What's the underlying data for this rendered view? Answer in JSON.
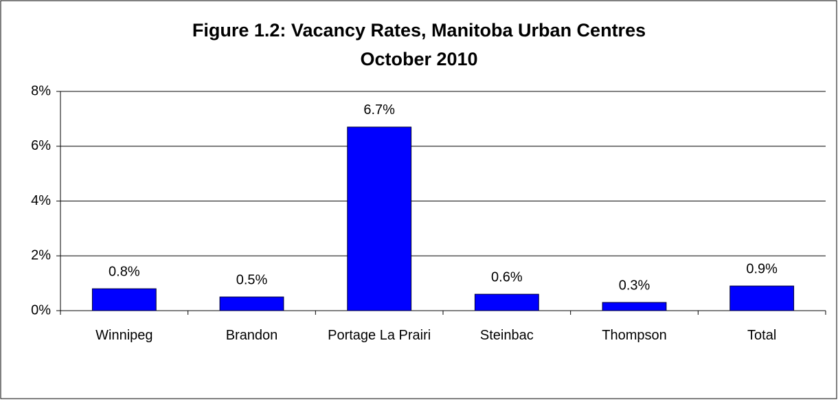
{
  "chart_data": {
    "type": "bar",
    "title": "Figure 1.2: Vacancy Rates, Manitoba Urban Centres",
    "subtitle": "October 2010",
    "categories": [
      "Winnipeg",
      "Brandon",
      "Portage La Prairi",
      "Steinbac",
      "Thompson",
      "Total"
    ],
    "values": [
      0.8,
      0.5,
      6.7,
      0.6,
      0.3,
      0.9
    ],
    "value_labels": [
      "0.8%",
      "0.5%",
      "6.7%",
      "0.6%",
      "0.3%",
      "0.9%"
    ],
    "color": "#0000ff",
    "ylim": [
      0,
      8
    ],
    "yticks": [
      {
        "value": 0,
        "label": "0%"
      },
      {
        "value": 2,
        "label": "2%"
      },
      {
        "value": 4,
        "label": "4%"
      },
      {
        "value": 6,
        "label": "6%"
      },
      {
        "value": 8,
        "label": "8%"
      }
    ],
    "grid": true
  }
}
